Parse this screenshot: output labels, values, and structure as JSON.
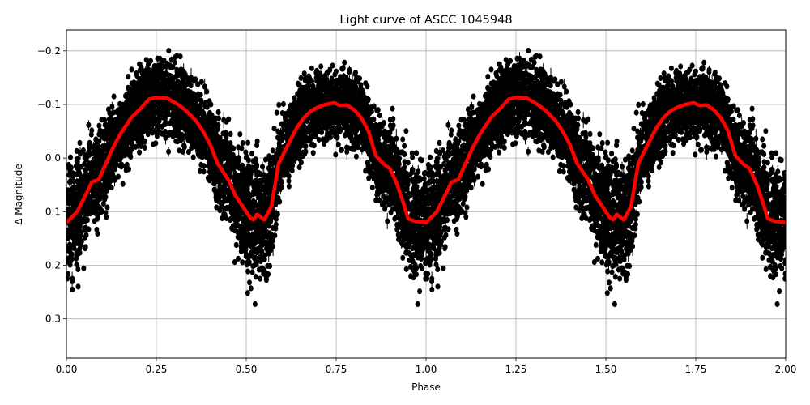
{
  "chart_data": {
    "type": "scatter",
    "title": "Light curve of ASCC 1045948",
    "xlabel": "Phase",
    "ylabel": "Δ Magnitude",
    "xlim": [
      0.0,
      2.0
    ],
    "ylim": [
      0.373,
      -0.239
    ],
    "y_inverted": true,
    "grid": true,
    "legend": null,
    "xticks": [
      "0.00",
      "0.25",
      "0.50",
      "0.75",
      "1.00",
      "1.25",
      "1.50",
      "1.75",
      "2.00"
    ],
    "xtick_values": [
      0.0,
      0.25,
      0.5,
      0.75,
      1.0,
      1.25,
      1.5,
      1.75,
      2.0
    ],
    "yticks": [
      "−0.2",
      "−0.1",
      "0.0",
      "0.1",
      "0.2",
      "0.3"
    ],
    "ytick_values": [
      -0.2,
      -0.1,
      0.0,
      0.1,
      0.2,
      0.3
    ],
    "series": [
      {
        "name": "observations",
        "kind": "scatter_with_errorbars",
        "color": "#000000",
        "description": "Dense phase-folded photometry with error bars, spread roughly ±0.12 mag around the binned curve, plotted twice over phase 0–2"
      },
      {
        "name": "binned mean",
        "kind": "line",
        "color": "#ff0000",
        "linewidth": 4,
        "x": [
          0.0,
          0.03,
          0.06,
          0.07,
          0.09,
          0.11,
          0.13,
          0.15,
          0.18,
          0.21,
          0.23,
          0.25,
          0.28,
          0.31,
          0.33,
          0.36,
          0.38,
          0.4,
          0.42,
          0.45,
          0.47,
          0.49,
          0.51,
          0.52,
          0.53,
          0.55,
          0.57,
          0.59,
          0.62,
          0.64,
          0.66,
          0.68,
          0.7,
          0.72,
          0.745,
          0.76,
          0.78,
          0.8,
          0.82,
          0.84,
          0.86,
          0.88,
          0.9,
          0.92,
          0.94,
          0.95,
          0.97,
          1.0
        ],
        "y": [
          0.12,
          0.1,
          0.06,
          0.045,
          0.04,
          0.01,
          -0.02,
          -0.045,
          -0.075,
          -0.095,
          -0.11,
          -0.113,
          -0.112,
          -0.1,
          -0.09,
          -0.07,
          -0.05,
          -0.025,
          0.01,
          0.04,
          0.07,
          0.09,
          0.11,
          0.115,
          0.105,
          0.115,
          0.09,
          0.01,
          -0.03,
          -0.056,
          -0.075,
          -0.088,
          -0.095,
          -0.1,
          -0.103,
          -0.098,
          -0.099,
          -0.09,
          -0.075,
          -0.05,
          -0.005,
          0.01,
          0.02,
          0.05,
          0.09,
          0.113,
          0.118,
          0.12
        ]
      }
    ]
  }
}
